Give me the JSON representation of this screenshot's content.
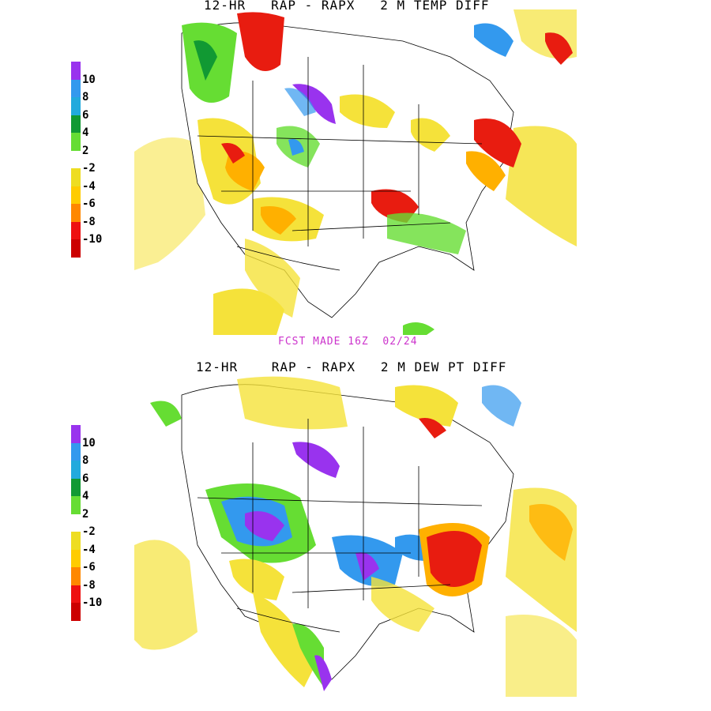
{
  "panels": {
    "top": {
      "title": "12-HR   RAP - RAPX   2 M TEMP DIFF"
    },
    "bottom": {
      "title": "12-HR    RAP - RAPX   2 M DEW PT DIFF"
    }
  },
  "forecast_label": "FCST MADE 16Z  02/24",
  "legend": {
    "labels": [
      "10",
      "8",
      "6",
      "4",
      "2",
      "-2",
      "-4",
      "-6",
      "-8",
      "-10"
    ],
    "colors": [
      "#9933ee",
      "#3399ee",
      "#22aadd",
      "#119933",
      "#66dd33",
      "#ffffff",
      "#eedd22",
      "#ffcc00",
      "#ff8800",
      "#ee1111",
      "#cc0000"
    ]
  },
  "colors": {
    "warm_light": "#f5e23a",
    "warm_mid": "#ffb000",
    "warm_dark": "#e81c10",
    "cool_light": "#66dd33",
    "cool_mid": "#119933",
    "cool_blue": "#3399ee",
    "cool_purple": "#9933ee",
    "fcst_text": "#cc33cc"
  }
}
